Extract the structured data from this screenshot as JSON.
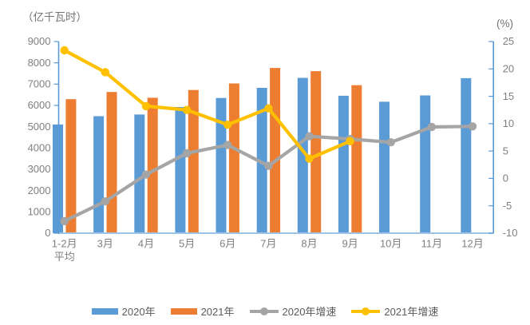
{
  "axis_unit_left": "（亿千瓦时）",
  "axis_unit_right": "(%)",
  "chart_data": {
    "type": "combo-bar-line",
    "categories": [
      "1-2月平均",
      "3月",
      "4月",
      "5月",
      "6月",
      "7月",
      "8月",
      "9月",
      "10月",
      "11月",
      "12月"
    ],
    "categories_display": [
      [
        "1-2月",
        "平均"
      ],
      [
        "3月"
      ],
      [
        "4月"
      ],
      [
        "5月"
      ],
      [
        "6月"
      ],
      [
        "7月"
      ],
      [
        "8月"
      ],
      [
        "9月"
      ],
      [
        "10月"
      ],
      [
        "11月"
      ],
      [
        "12月"
      ]
    ],
    "series": [
      {
        "name": "2020年",
        "type": "bar",
        "axis": "left",
        "color": "#5B9BD5",
        "values": [
          5102,
          5493,
          5572,
          5926,
          6350,
          6824,
          7294,
          6454,
          6172,
          6467,
          7277
        ]
      },
      {
        "name": "2021年",
        "type": "bar",
        "axis": "left",
        "color": "#ED7D31",
        "values": [
          6294,
          6631,
          6361,
          6724,
          7033,
          7758,
          7607,
          6947,
          null,
          null,
          null
        ]
      },
      {
        "name": "2020年增速",
        "type": "line",
        "axis": "right",
        "color": "#A5A5A5",
        "values": [
          -7.8,
          -4.2,
          0.7,
          4.6,
          6.1,
          2.3,
          7.7,
          7.2,
          6.6,
          9.4,
          9.5
        ]
      },
      {
        "name": "2021年增速",
        "type": "line",
        "axis": "right",
        "color": "#FFC000",
        "values": [
          23.4,
          19.4,
          13.2,
          12.5,
          9.8,
          12.8,
          3.6,
          6.8,
          null,
          null,
          null
        ]
      }
    ],
    "left_axis": {
      "unit": "（亿千瓦时）",
      "min": 0,
      "max": 9000,
      "step": 1000,
      "ticks": [
        "9000",
        "8000",
        "7000",
        "6000",
        "5000",
        "4000",
        "3000",
        "2000",
        "1000",
        "0"
      ]
    },
    "right_axis": {
      "unit": "(%)",
      "min": -10,
      "max": 25,
      "step": 5,
      "ticks": [
        "25",
        "20",
        "15",
        "10",
        "5",
        "0",
        "-5",
        "-10"
      ]
    },
    "grid": false,
    "legend_position": "bottom"
  },
  "legend": {
    "items": [
      {
        "label": "2020年",
        "swatch": "bar",
        "color": "#5B9BD5"
      },
      {
        "label": "2021年",
        "swatch": "bar",
        "color": "#ED7D31"
      },
      {
        "label": "2020年增速",
        "swatch": "line",
        "color": "#A5A5A5"
      },
      {
        "label": "2021年增速",
        "swatch": "line",
        "color": "#FFC000"
      }
    ]
  },
  "colors": {
    "bar_2020": "#5B9BD5",
    "bar_2021": "#ED7D31",
    "line_2020_growth": "#A5A5A5",
    "line_2021_growth": "#FFC000",
    "axis_line": "#5B9BD5",
    "baseline": "#9DC3E6",
    "tick_label": "#7F7F7F",
    "unit_label": "#737373",
    "legend_label": "#595959",
    "background": "#FFFFFF"
  }
}
